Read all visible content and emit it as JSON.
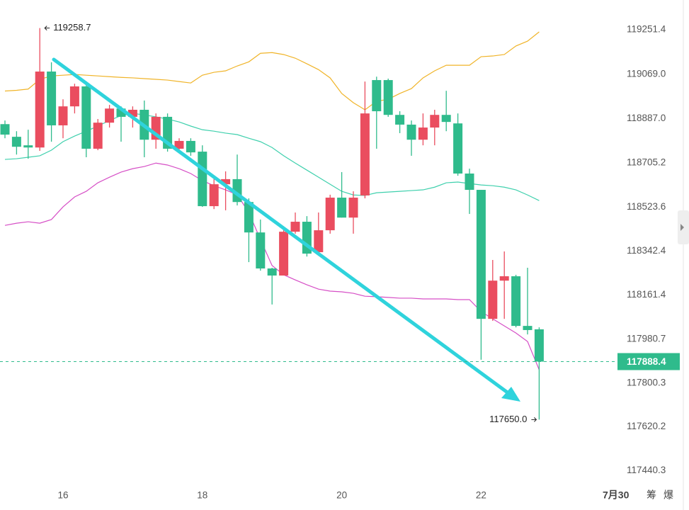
{
  "chart_data": {
    "type": "candlestick",
    "categories": [
      null,
      null,
      null,
      null,
      null,
      "16",
      null,
      null,
      null,
      null,
      null,
      null,
      null,
      null,
      null,
      null,
      null,
      "18",
      null,
      null,
      null,
      null,
      null,
      null,
      null,
      null,
      null,
      null,
      null,
      "20",
      null,
      null,
      null,
      null,
      null,
      null,
      null,
      null,
      null,
      null,
      null,
      "22",
      null,
      null,
      null,
      null,
      null
    ],
    "open": [
      118864,
      118812,
      118777,
      118768,
      119080,
      118859,
      118937,
      119019,
      118763,
      118870,
      118928,
      118894,
      118923,
      118800,
      118894,
      118763,
      118795,
      118751,
      118527,
      118617,
      118638,
      118544,
      118419,
      118271,
      118242,
      118422,
      118463,
      118338,
      118428,
      118562,
      118480,
      118571,
      119045,
      119045,
      118902,
      118862,
      118800,
      118850,
      118902,
      118867,
      118661,
      118594,
      118064,
      118221,
      118239,
      118035,
      118021
    ],
    "high": [
      118879,
      118835,
      118841,
      119258.7,
      119118,
      118966,
      119030,
      119039,
      118885,
      118943,
      118937,
      118937,
      118961,
      118908,
      118908,
      118806,
      118806,
      118777,
      118646,
      118670,
      118739,
      118559,
      118472,
      118274,
      118434,
      118501,
      118486,
      118501,
      118574,
      118667,
      118588,
      119039,
      119059,
      119051,
      118917,
      118879,
      118908,
      118923,
      119001,
      118908,
      118681,
      118594,
      118306,
      118341,
      118245,
      118274,
      118029
    ],
    "low": [
      118806,
      118739,
      118722,
      118754,
      118792,
      118806,
      118908,
      118728,
      118757,
      118850,
      118792,
      118850,
      118728,
      118763,
      118751,
      118751,
      118734,
      118524,
      118515,
      118510,
      118530,
      118297,
      118262,
      118123,
      118242,
      118414,
      118320,
      118326,
      118414,
      118480,
      118414,
      118559,
      118763,
      118894,
      118827,
      118734,
      118777,
      118777,
      118835,
      118652,
      118495,
      117896,
      118056,
      118064,
      118029,
      118000,
      117650
    ],
    "close": [
      118821,
      118771,
      118768,
      119080,
      118859,
      118937,
      119019,
      118763,
      118870,
      118928,
      118894,
      118923,
      118800,
      118894,
      118763,
      118795,
      118748,
      118527,
      118617,
      118638,
      118544,
      118419,
      118271,
      118242,
      118422,
      118463,
      118332,
      118428,
      118562,
      118480,
      118562,
      118908,
      118917,
      118902,
      118862,
      118800,
      118850,
      118902,
      118873,
      118661,
      118594,
      118064,
      118221,
      118239,
      118035,
      118018,
      117888.4
    ],
    "up_color": "#ea4d5f",
    "down_color": "#2fbb8c",
    "bands": [
      {
        "color": "#f0b429",
        "values": [
          119000,
          119003,
          119008,
          119048,
          119062,
          119065,
          119068,
          119065,
          119062,
          119059,
          119056,
          119054,
          119051,
          119048,
          119045,
          119039,
          119033,
          119065,
          119077,
          119083,
          119103,
          119120,
          119155,
          119158,
          119150,
          119135,
          119112,
          119088,
          119054,
          118990,
          118952,
          118923,
          118958,
          118966,
          118990,
          119010,
          119054,
          119083,
          119106,
          119106,
          119106,
          119141,
          119144,
          119150,
          119185,
          119205,
          119243
        ]
      },
      {
        "color": "#3fd0ad",
        "values": [
          118719,
          118722,
          118728,
          118734,
          118757,
          118792,
          118815,
          118835,
          118856,
          118879,
          118899,
          118908,
          118902,
          118894,
          118885,
          118873,
          118856,
          118841,
          118835,
          118827,
          118821,
          118806,
          118792,
          118768,
          118734,
          118704,
          118675,
          118646,
          118617,
          118588,
          118573,
          118571,
          118582,
          118585,
          118588,
          118591,
          118594,
          118605,
          118623,
          118626,
          118620,
          118614,
          118611,
          118605,
          118594,
          118573,
          118550
        ]
      },
      {
        "color": "#d64fc6",
        "values": [
          118448,
          118457,
          118463,
          118457,
          118472,
          118524,
          118565,
          118588,
          118623,
          118646,
          118667,
          118681,
          118690,
          118704,
          118696,
          118681,
          118661,
          118632,
          118611,
          118594,
          118574,
          118501,
          118390,
          118283,
          118245,
          118224,
          118204,
          118186,
          118178,
          118175,
          118169,
          118157,
          118155,
          118152,
          118149,
          118149,
          118146,
          118146,
          118146,
          118143,
          118143,
          118094,
          118064,
          118035,
          118006,
          117971,
          117855
        ]
      }
    ],
    "extreme_labels": {
      "high": "119258.7",
      "low": "117650.0"
    },
    "last_price": 117888.4,
    "ylim": [
      117366,
      119374
    ],
    "yticks": [
      119251.4,
      {
        "value": 119069,
        "label": "119069.0"
      },
      {
        "value": 118887,
        "label": "118887.0"
      },
      118705.2,
      118523.6,
      118342.4,
      118161.4,
      117980.7,
      117800.3,
      117620.2,
      117440.3
    ],
    "footer_labels": [
      "7月30",
      "筹",
      "爆"
    ]
  }
}
